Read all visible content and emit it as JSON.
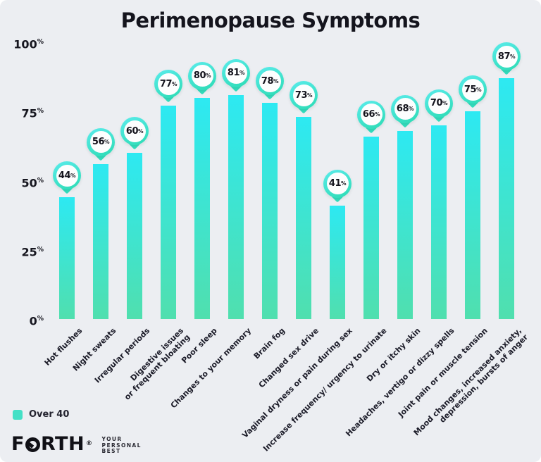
{
  "chart_data": {
    "type": "bar",
    "title": "Perimenopause Symptoms",
    "unit": "%",
    "categories": [
      "Hot flushes",
      "Night sweats",
      "Irregular periods",
      "Digestive issues\nor frequent bloating",
      "Poor sleep",
      "Changes to your memory",
      "Brain fog",
      "Changed sex drive",
      "Vaginal dryness or pain during sex",
      "Increase frequency/ urgency to urinate",
      "Dry or itchy skin",
      "Headaches, vertigo or dizzy spells",
      "Joint pain or muscle tension",
      "Mood changes, increased anxiety,\ndepression, bursts of anger"
    ],
    "series": [
      {
        "name": "Over 40",
        "values": [
          44,
          56,
          60,
          77,
          80,
          81,
          78,
          73,
          41,
          66,
          68,
          70,
          75,
          87
        ]
      }
    ],
    "yticks": [
      100,
      75,
      50,
      25,
      0
    ],
    "ylim": [
      0,
      100
    ],
    "grid": false,
    "legend_position": "bottom-left",
    "bar_color_top": "#2DE9F2",
    "bar_color_bottom": "#50DFAE"
  },
  "legend": {
    "label": "Over 40",
    "swatch_color": "#44E0C6"
  },
  "logo": {
    "brand": "FORTH",
    "registered": "®",
    "tagline_lines": [
      "YOUR",
      "PERSONAL",
      "BEST"
    ]
  }
}
